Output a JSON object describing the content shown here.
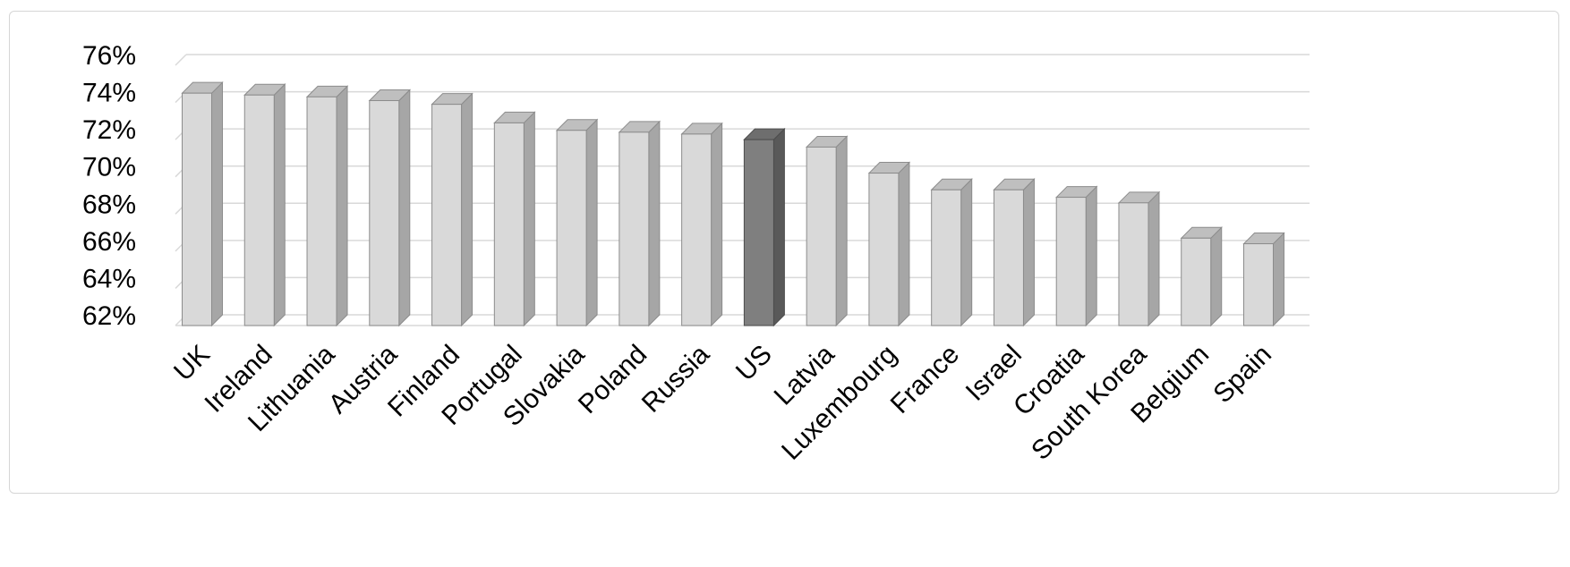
{
  "chart_data": {
    "type": "bar",
    "style": "3d-column",
    "title": "",
    "xlabel": "",
    "ylabel": "",
    "categories": [
      "UK",
      "Ireland",
      "Lithuania",
      "Austria",
      "Finland",
      "Portugal",
      "Slovakia",
      "Poland",
      "Russia",
      "US",
      "Latvia",
      "Luxembourg",
      "France",
      "Israel",
      "Croatia",
      "South Korea",
      "Belgium",
      "Spain"
    ],
    "values": [
      74.5,
      74.4,
      74.3,
      74.1,
      73.9,
      72.9,
      72.5,
      72.4,
      72.3,
      72.0,
      71.6,
      70.2,
      69.3,
      69.3,
      68.9,
      68.6,
      66.7,
      66.4
    ],
    "value_format": "percent",
    "highlighted_category": "US",
    "ylim": [
      62,
      76
    ],
    "ytick_step": 2,
    "ytick_labels": [
      "62%",
      "64%",
      "66%",
      "68%",
      "70%",
      "72%",
      "74%",
      "76%"
    ],
    "grid": true,
    "legend": false,
    "colors": {
      "bar_front": "#d9d9d9",
      "bar_side": "#a6a6a6",
      "bar_top": "#bfbfbf",
      "bar_stroke": "#8c8c8c",
      "highlight_front": "#7f7f7f",
      "highlight_side": "#595959",
      "highlight_top": "#6e6e6e",
      "highlight_stroke": "#4d4d4d",
      "gridline": "#d9d9d9",
      "axis_text": "#000000",
      "frame_border": "#d6d6d6",
      "background": "#ffffff"
    }
  }
}
